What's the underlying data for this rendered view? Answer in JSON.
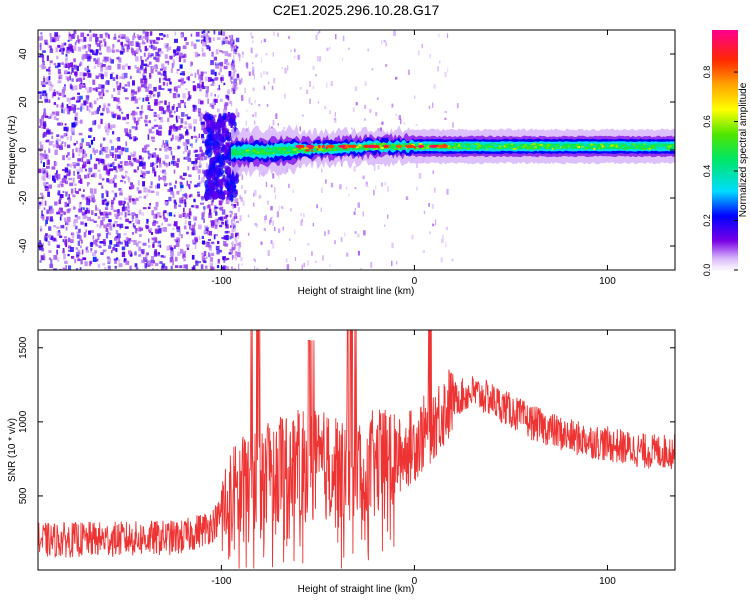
{
  "title": "C2E1.2025.296.10.28.G17",
  "chart_data": [
    {
      "type": "heatmap",
      "xlabel": "Height of straight line (km)",
      "ylabel": "Frequency (Hz)",
      "xlim": [
        -195,
        135
      ],
      "ylim": [
        -50,
        50
      ],
      "xticks": [
        -100,
        0,
        100
      ],
      "yticks": [
        -40,
        -20,
        0,
        20,
        40
      ],
      "colorbar": {
        "label": "Normalized spectral amplitude",
        "range": [
          0,
          0.97
        ],
        "ticks": [
          0.0,
          0.2,
          0.4,
          0.6,
          0.8
        ]
      },
      "features": [
        {
          "region": "noise",
          "x_range": [
            -195,
            -95
          ],
          "freq_range": [
            -50,
            50
          ],
          "amplitude": 0.1
        },
        {
          "region": "band",
          "x_range": [
            -95,
            135
          ],
          "center_freq_hz": 1.5,
          "half_width_hz": 3,
          "amplitude": 0.45
        },
        {
          "region": "peaks",
          "x_range": [
            -60,
            20
          ],
          "center_freq_hz": 1.5,
          "amplitude": 0.9
        }
      ]
    },
    {
      "type": "line",
      "xlabel": "Height of straight line (km)",
      "ylabel": "SNR (10 * v/v)",
      "xlim": [
        -195,
        135
      ],
      "ylim": [
        0,
        1620
      ],
      "xticks": [
        -100,
        0,
        100
      ],
      "yticks": [
        500,
        1000,
        1500
      ],
      "series": [
        {
          "color": "#ee3333",
          "x": [
            -195,
            -150,
            -120,
            -105,
            -95,
            -80,
            -60,
            -40,
            -20,
            -10,
            0,
            10,
            20,
            30,
            40,
            60,
            80,
            100,
            120,
            135
          ],
          "y": [
            200,
            210,
            220,
            300,
            450,
            700,
            700,
            700,
            700,
            750,
            850,
            1000,
            1150,
            1200,
            1150,
            1000,
            900,
            850,
            800,
            800
          ]
        }
      ]
    }
  ]
}
